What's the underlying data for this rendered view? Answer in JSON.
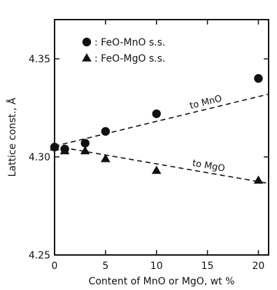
{
  "chart_data": {
    "type": "scatter",
    "xlabel": "Content of MnO or MgO, wt %",
    "ylabel": "Lattice const., Å",
    "xlim": [
      0,
      21
    ],
    "ylim": [
      4.25,
      4.37
    ],
    "xticks": [
      0,
      5,
      10,
      15,
      20
    ],
    "xtick_labels": [
      "0",
      "5",
      "10",
      "15",
      "20"
    ],
    "yticks": [
      4.25,
      4.3,
      4.35
    ],
    "ytick_labels": [
      "4.25",
      "4.30",
      "4.35"
    ],
    "legend_position": "top-left",
    "series": [
      {
        "name": "FeO-MnO s.s.",
        "marker": "circle",
        "color": "#111111",
        "x": [
          0,
          1,
          3,
          5,
          10,
          20
        ],
        "y": [
          4.305,
          4.304,
          4.307,
          4.313,
          4.322,
          4.34
        ]
      },
      {
        "name": "FeO-MgO s.s.",
        "marker": "triangle",
        "color": "#111111",
        "x": [
          0,
          1,
          3,
          5,
          10,
          20
        ],
        "y": [
          4.305,
          4.303,
          4.303,
          4.299,
          4.293,
          4.288
        ]
      }
    ],
    "trend_lines": [
      {
        "label": "to MnO",
        "x": [
          0,
          21
        ],
        "y": [
          4.3055,
          4.332
        ]
      },
      {
        "label": "to MgO",
        "x": [
          0,
          21
        ],
        "y": [
          4.3055,
          4.2865
        ]
      }
    ]
  }
}
